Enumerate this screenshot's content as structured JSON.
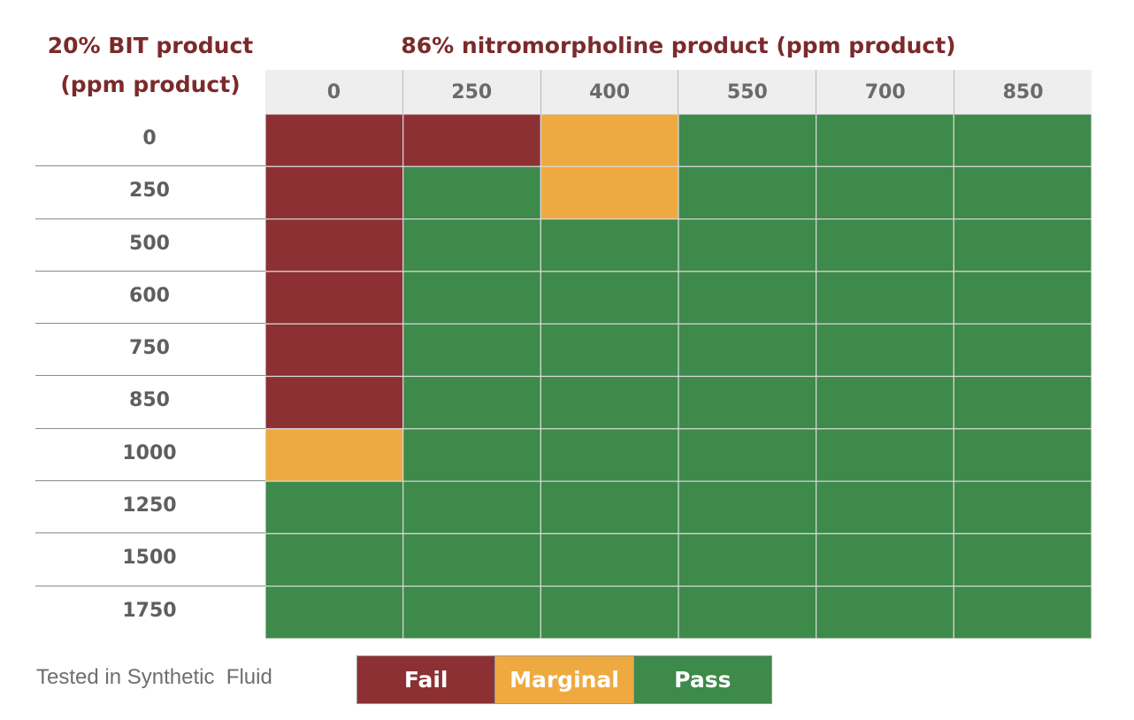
{
  "chart_data": {
    "type": "heatmap",
    "row_axis_label": "20% BIT product (ppm product)",
    "col_axis_label": "86% nitromorpholine product (ppm product)",
    "columns": [
      "0",
      "250",
      "400",
      "550",
      "700",
      "850"
    ],
    "rows": [
      "0",
      "250",
      "500",
      "600",
      "750",
      "850",
      "1000",
      "1250",
      "1500",
      "1750"
    ],
    "values": [
      [
        "Fail",
        "Fail",
        "Marginal",
        "Pass",
        "Pass",
        "Pass"
      ],
      [
        "Fail",
        "Pass",
        "Marginal",
        "Pass",
        "Pass",
        "Pass"
      ],
      [
        "Fail",
        "Pass",
        "Pass",
        "Pass",
        "Pass",
        "Pass"
      ],
      [
        "Fail",
        "Pass",
        "Pass",
        "Pass",
        "Pass",
        "Pass"
      ],
      [
        "Fail",
        "Pass",
        "Pass",
        "Pass",
        "Pass",
        "Pass"
      ],
      [
        "Fail",
        "Pass",
        "Pass",
        "Pass",
        "Pass",
        "Pass"
      ],
      [
        "Marginal",
        "Pass",
        "Pass",
        "Pass",
        "Pass",
        "Pass"
      ],
      [
        "Pass",
        "Pass",
        "Pass",
        "Pass",
        "Pass",
        "Pass"
      ],
      [
        "Pass",
        "Pass",
        "Pass",
        "Pass",
        "Pass",
        "Pass"
      ],
      [
        "Pass",
        "Pass",
        "Pass",
        "Pass",
        "Pass",
        "Pass"
      ]
    ],
    "legend": [
      {
        "label": "Fail",
        "color": "#8c3033"
      },
      {
        "label": "Marginal",
        "color": "#eeaa40"
      },
      {
        "label": "Pass",
        "color": "#3d8a4b"
      }
    ]
  },
  "titles": {
    "row_title_line1": "20% BIT product",
    "row_title_line2": "(ppm product)",
    "col_title": "86% nitromorpholine product (ppm product)"
  },
  "footer": {
    "caption": "Tested in Synthetic  Fluid"
  }
}
